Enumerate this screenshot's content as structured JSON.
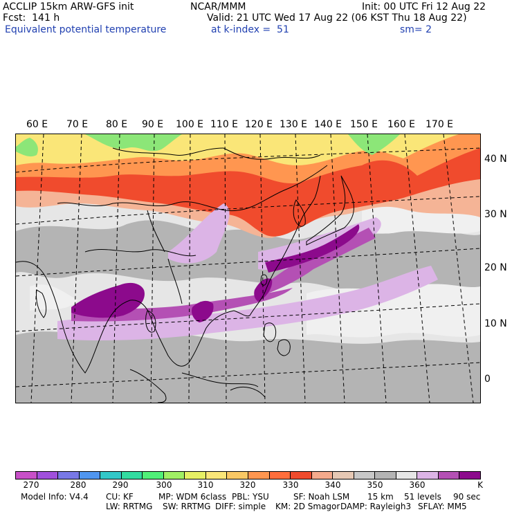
{
  "header": {
    "line1_left": "ACCLIP 15km ARW-GFS init",
    "line1_center": "NCAR/MMM",
    "line1_right": "Init: 00 UTC Fri 12 Aug 22",
    "line2_left": "Fcst:  141 h",
    "line2_right": "Valid: 21 UTC Wed 17 Aug 22 (06 KST Thu 18 Aug 22)",
    "line3_field": "Equivalent potential temperature",
    "line3_level": "at k-index =  51",
    "line3_smooth": "sm= 2"
  },
  "map": {
    "lon_labels": [
      "60 E",
      "70 E",
      "80 E",
      "90 E",
      "100 E",
      "110 E",
      "120 E",
      "130 E",
      "140 E",
      "150 E",
      "160 E",
      "170 E"
    ],
    "lat_labels": [
      "40 N",
      "30 N",
      "20 N",
      "10 N",
      "0"
    ],
    "colors": {
      "ocean_base": "#e6e6e6",
      "dark_gray": "#b4b4b4",
      "light_gray": "#f0f0f0",
      "light_purple": "#dcb4e6",
      "purple": "#b450b4",
      "dark_purple": "#8c0a8c",
      "red": "#f04b2d",
      "orange_red": "#ff6e3c",
      "orange": "#ffa564",
      "yellow": "#fae678",
      "green": "#8ce678",
      "salmon": "#f5b496"
    }
  },
  "colorbar": {
    "colors": [
      "#c850c8",
      "#a050dc",
      "#7878e6",
      "#5096f0",
      "#32c8c8",
      "#32dca0",
      "#50f078",
      "#a0f064",
      "#e6f064",
      "#fae678",
      "#fac864",
      "#ff9650",
      "#ff6e3c",
      "#f04b2d",
      "#f5aa8c",
      "#e6c8b4",
      "#c8c8c8",
      "#b4b4b4",
      "#e6e6e6",
      "#dcb4e6",
      "#b450b4",
      "#8c0a8c"
    ],
    "labels": [
      "270",
      "280",
      "290",
      "300",
      "310",
      "320",
      "330",
      "340",
      "350",
      "360",
      "K"
    ]
  },
  "footer": {
    "row1": [
      "Model Info: V4.4",
      "CU: KF",
      "MP: WDM 6class",
      "PBL: YSU",
      "SF: Noah LSM",
      "15 km",
      "51 levels",
      "90 sec"
    ],
    "row2": [
      "LW: RRTMG",
      "SW: RRTMG",
      "DIFF: simple",
      "KM: 2D Smagor",
      "DAMP: Rayleigh3",
      "SFLAY: MM5"
    ]
  }
}
